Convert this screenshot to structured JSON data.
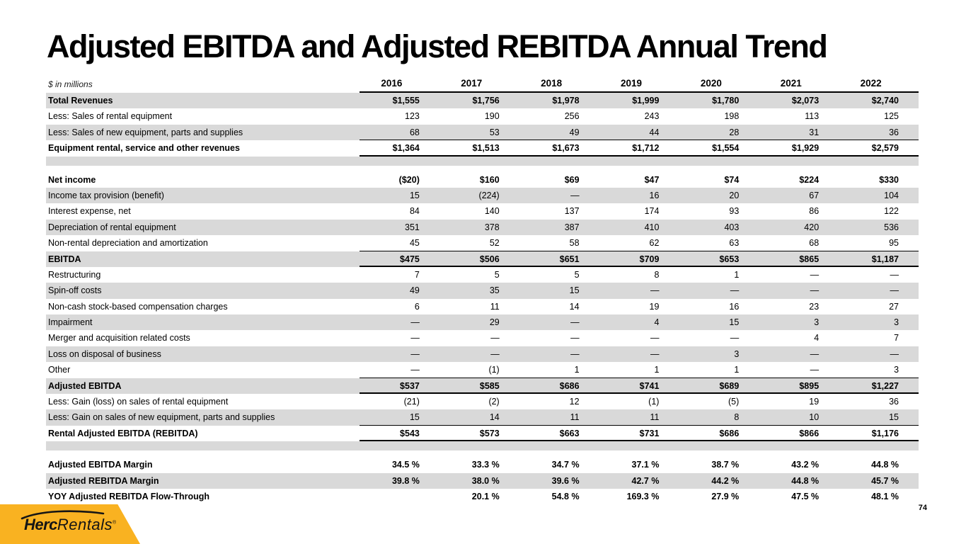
{
  "slide": {
    "title": "Adjusted EBITDA and Adjusted REBITDA Annual Trend",
    "page_number": "74"
  },
  "logo": {
    "brand_bold": "Herc",
    "brand_light": "Rentals",
    "registered": "®",
    "accent_color": "#F9B221"
  },
  "table": {
    "units_label": "$ in millions",
    "shade_color": "#D9D9D9",
    "years": [
      "2016",
      "2017",
      "2018",
      "2019",
      "2020",
      "2021",
      "2022"
    ],
    "rows": [
      {
        "label": "Total Revenues",
        "values": [
          "$1,555",
          "$1,756",
          "$1,978",
          "$1,999",
          "$1,780",
          "$2,073",
          "$2,740"
        ],
        "bold": true,
        "shaded": true,
        "border": "none"
      },
      {
        "label": "Less: Sales of rental equipment",
        "values": [
          "123",
          "190",
          "256",
          "243",
          "198",
          "113",
          "125"
        ],
        "bold": false,
        "shaded": false,
        "border": "none"
      },
      {
        "label": "Less: Sales of new equipment, parts and supplies",
        "values": [
          "68",
          "53",
          "49",
          "44",
          "28",
          "31",
          "36"
        ],
        "bold": false,
        "shaded": true,
        "border": "thin"
      },
      {
        "label": "Equipment rental, service and other revenues",
        "values": [
          "$1,364",
          "$1,513",
          "$1,673",
          "$1,712",
          "$1,554",
          "$1,929",
          "$2,579"
        ],
        "bold": true,
        "shaded": false,
        "border": "thick"
      },
      {
        "blank": true
      },
      {
        "label": "Net income",
        "values": [
          "($20)",
          "$160",
          "$69",
          "$47",
          "$74",
          "$224",
          "$330"
        ],
        "bold": true,
        "shaded": false,
        "border": "none"
      },
      {
        "label": "Income tax provision (benefit)",
        "values": [
          "15",
          "(224)",
          "—",
          "16",
          "20",
          "67",
          "104"
        ],
        "bold": false,
        "shaded": true,
        "border": "none"
      },
      {
        "label": "Interest expense, net",
        "values": [
          "84",
          "140",
          "137",
          "174",
          "93",
          "86",
          "122"
        ],
        "bold": false,
        "shaded": false,
        "border": "none"
      },
      {
        "label": "Depreciation of rental equipment",
        "values": [
          "351",
          "378",
          "387",
          "410",
          "403",
          "420",
          "536"
        ],
        "bold": false,
        "shaded": true,
        "border": "none"
      },
      {
        "label": "Non-rental depreciation and amortization",
        "values": [
          "45",
          "52",
          "58",
          "62",
          "63",
          "68",
          "95"
        ],
        "bold": false,
        "shaded": false,
        "border": "thin"
      },
      {
        "label": "EBITDA",
        "values": [
          "$475",
          "$506",
          "$651",
          "$709",
          "$653",
          "$865",
          "$1,187"
        ],
        "bold": true,
        "shaded": true,
        "border": "thick"
      },
      {
        "label": "Restructuring",
        "values": [
          "7",
          "5",
          "5",
          "8",
          "1",
          "—",
          "—"
        ],
        "bold": false,
        "shaded": false,
        "border": "none"
      },
      {
        "label": "Spin-off costs",
        "values": [
          "49",
          "35",
          "15",
          "—",
          "—",
          "—",
          "—"
        ],
        "bold": false,
        "shaded": true,
        "border": "none"
      },
      {
        "label": "Non-cash stock-based compensation charges",
        "values": [
          "6",
          "11",
          "14",
          "19",
          "16",
          "23",
          "27"
        ],
        "bold": false,
        "shaded": false,
        "border": "none"
      },
      {
        "label": "Impairment",
        "values": [
          "—",
          "29",
          "—",
          "4",
          "15",
          "3",
          "3"
        ],
        "bold": false,
        "shaded": true,
        "border": "none"
      },
      {
        "label": "Merger and acquisition related costs",
        "values": [
          "—",
          "—",
          "—",
          "—",
          "—",
          "4",
          "7"
        ],
        "bold": false,
        "shaded": false,
        "border": "none"
      },
      {
        "label": "Loss on disposal of business",
        "values": [
          "—",
          "—",
          "—",
          "—",
          "3",
          "—",
          "—"
        ],
        "bold": false,
        "shaded": true,
        "border": "none"
      },
      {
        "label": "Other",
        "values": [
          "—",
          "(1)",
          "1",
          "1",
          "1",
          "—",
          "3"
        ],
        "bold": false,
        "shaded": false,
        "border": "thin"
      },
      {
        "label": "Adjusted EBITDA",
        "values": [
          "$537",
          "$585",
          "$686",
          "$741",
          "$689",
          "$895",
          "$1,227"
        ],
        "bold": true,
        "shaded": true,
        "border": "thick"
      },
      {
        "label": "Less: Gain (loss) on sales of rental equipment",
        "values": [
          "(21)",
          "(2)",
          "12",
          "(1)",
          "(5)",
          "19",
          "36"
        ],
        "bold": false,
        "shaded": false,
        "border": "none"
      },
      {
        "label": "Less: Gain on sales of new equipment, parts and supplies",
        "values": [
          "15",
          "14",
          "11",
          "11",
          "8",
          "10",
          "15"
        ],
        "bold": false,
        "shaded": true,
        "border": "thin"
      },
      {
        "label": "Rental Adjusted EBITDA (REBITDA)",
        "values": [
          "$543",
          "$573",
          "$663",
          "$731",
          "$686",
          "$866",
          "$1,176"
        ],
        "bold": true,
        "shaded": false,
        "border": "thick"
      },
      {
        "blank": true
      },
      {
        "label": "Adjusted EBITDA Margin",
        "values": [
          "34.5 %",
          "33.3 %",
          "34.7 %",
          "37.1 %",
          "38.7 %",
          "43.2 %",
          "44.8 %"
        ],
        "bold": true,
        "shaded": false,
        "border": "none"
      },
      {
        "label": "Adjusted REBITDA Margin",
        "values": [
          "39.8 %",
          "38.0 %",
          "39.6 %",
          "42.7 %",
          "44.2 %",
          "44.8 %",
          "45.7 %"
        ],
        "bold": true,
        "shaded": true,
        "border": "none"
      },
      {
        "label": "YOY Adjusted REBITDA Flow-Through",
        "values": [
          "",
          "20.1 %",
          "54.8 %",
          "169.3 %",
          "27.9 %",
          "47.5 %",
          "48.1 %"
        ],
        "bold": true,
        "shaded": false,
        "border": "none"
      }
    ]
  }
}
